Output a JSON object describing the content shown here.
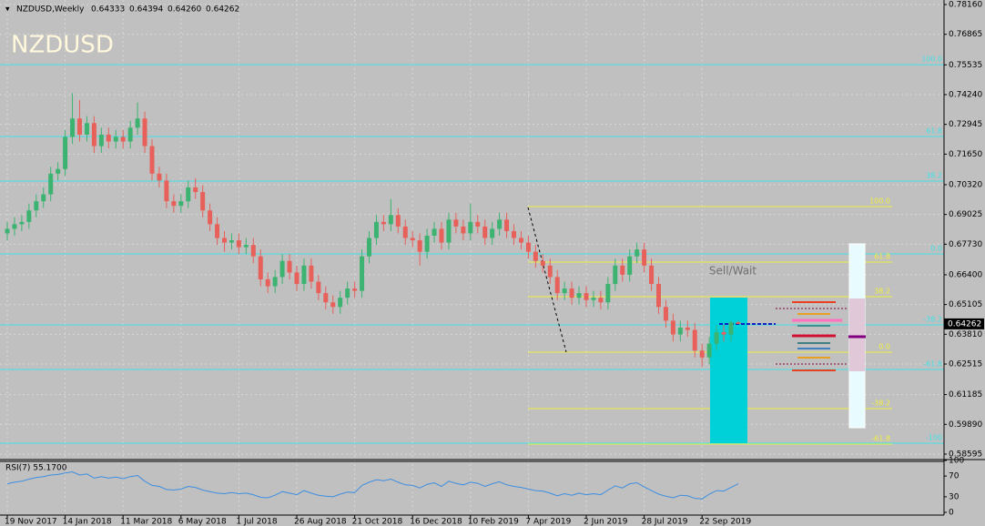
{
  "chart_data": {
    "type": "candlestick",
    "title": "NZDUSD,Weekly",
    "header_values": [
      "0.64333",
      "0.64394",
      "0.64260",
      "0.64262"
    ],
    "watermark": "NZDUSD",
    "colors": {
      "up": "#3cb371",
      "down": "#e8605a"
    },
    "ylim": [
      0.58357,
      0.78358
    ],
    "yticks": [
      {
        "value": 0.7816,
        "label": "0.78160"
      },
      0.76865,
      0.75535,
      {
        "value": 0.7424,
        "label": "0.74240"
      },
      0.72945,
      {
        "value": 0.7165,
        "label": "0.71650"
      },
      {
        "value": 0.7032,
        "label": "0.70320"
      },
      0.69025,
      {
        "value": 0.6773,
        "label": "0.67730"
      },
      {
        "value": 0.664,
        "label": "0.66400"
      },
      0.65105,
      {
        "value": 0.6381,
        "label": "0.63810"
      },
      0.62515,
      0.61185,
      {
        "value": 0.5989,
        "label": "0.59890"
      },
      0.58595
    ],
    "last_price": 0.64262,
    "grid": true,
    "categories": [
      "19 Nov 2017",
      null,
      null,
      null,
      null,
      null,
      null,
      null,
      "14 Jan 2018",
      null,
      null,
      null,
      null,
      null,
      null,
      null,
      "11 Mar 2018",
      null,
      null,
      null,
      null,
      null,
      null,
      null,
      "6 May 2018",
      null,
      null,
      null,
      null,
      null,
      null,
      null,
      "1 Jul 2018",
      null,
      null,
      null,
      null,
      null,
      null,
      null,
      "26 Aug 2018",
      null,
      null,
      null,
      null,
      null,
      null,
      null,
      "21 Oct 2018",
      null,
      null,
      null,
      null,
      null,
      null,
      null,
      "16 Dec 2018",
      null,
      null,
      null,
      null,
      null,
      null,
      null,
      "10 Feb 2019",
      null,
      null,
      null,
      null,
      null,
      null,
      null,
      "7 Apr 2019",
      null,
      null,
      null,
      null,
      null,
      null,
      null,
      "2 Jun 2019",
      null,
      null,
      null,
      null,
      null,
      null,
      null,
      "28 Jul 2019",
      null,
      null,
      null,
      null,
      null,
      null,
      null,
      "22 Sep 2019",
      null,
      null,
      null,
      null,
      null
    ],
    "ohlc": [
      [
        0.682,
        0.687,
        0.679,
        0.684
      ],
      [
        0.684,
        0.689,
        0.681,
        0.686
      ],
      [
        0.686,
        0.69,
        0.683,
        0.687
      ],
      [
        0.687,
        0.695,
        0.684,
        0.692
      ],
      [
        0.692,
        0.699,
        0.689,
        0.696
      ],
      [
        0.696,
        0.702,
        0.693,
        0.699
      ],
      [
        0.699,
        0.711,
        0.696,
        0.708
      ],
      [
        0.708,
        0.713,
        0.705,
        0.71
      ],
      [
        0.71,
        0.727,
        0.707,
        0.724
      ],
      [
        0.724,
        0.743,
        0.721,
        0.732
      ],
      [
        0.732,
        0.74,
        0.722,
        0.725
      ],
      [
        0.725,
        0.733,
        0.722,
        0.73
      ],
      [
        0.73,
        0.733,
        0.717,
        0.72
      ],
      [
        0.72,
        0.728,
        0.717,
        0.725
      ],
      [
        0.725,
        0.728,
        0.719,
        0.722
      ],
      [
        0.722,
        0.727,
        0.719,
        0.724
      ],
      [
        0.724,
        0.727,
        0.719,
        0.722
      ],
      [
        0.722,
        0.731,
        0.719,
        0.728
      ],
      [
        0.728,
        0.739,
        0.725,
        0.732
      ],
      [
        0.732,
        0.735,
        0.717,
        0.72
      ],
      [
        0.72,
        0.723,
        0.705,
        0.708
      ],
      [
        0.708,
        0.711,
        0.702,
        0.705
      ],
      [
        0.705,
        0.708,
        0.693,
        0.696
      ],
      [
        0.696,
        0.699,
        0.691,
        0.694
      ],
      [
        0.694,
        0.699,
        0.691,
        0.696
      ],
      [
        0.696,
        0.705,
        0.693,
        0.702
      ],
      [
        0.702,
        0.706,
        0.697,
        0.7
      ],
      [
        0.7,
        0.703,
        0.689,
        0.692
      ],
      [
        0.692,
        0.695,
        0.683,
        0.686
      ],
      [
        0.686,
        0.689,
        0.677,
        0.68
      ],
      [
        0.68,
        0.683,
        0.674,
        0.678
      ],
      [
        0.678,
        0.682,
        0.675,
        0.679
      ],
      [
        0.679,
        0.682,
        0.673,
        0.676
      ],
      [
        0.676,
        0.68,
        0.673,
        0.677
      ],
      [
        0.677,
        0.68,
        0.669,
        0.672
      ],
      [
        0.672,
        0.675,
        0.659,
        0.662
      ],
      [
        0.662,
        0.665,
        0.656,
        0.659
      ],
      [
        0.659,
        0.666,
        0.656,
        0.663
      ],
      [
        0.663,
        0.673,
        0.66,
        0.67
      ],
      [
        0.67,
        0.673,
        0.662,
        0.665
      ],
      [
        0.665,
        0.668,
        0.657,
        0.66
      ],
      [
        0.66,
        0.671,
        0.657,
        0.668
      ],
      [
        0.668,
        0.671,
        0.658,
        0.661
      ],
      [
        0.661,
        0.664,
        0.653,
        0.656
      ],
      [
        0.656,
        0.659,
        0.649,
        0.652
      ],
      [
        0.652,
        0.655,
        0.647,
        0.65
      ],
      [
        0.65,
        0.657,
        0.647,
        0.654
      ],
      [
        0.654,
        0.661,
        0.651,
        0.658
      ],
      [
        0.658,
        0.661,
        0.654,
        0.657
      ],
      [
        0.657,
        0.675,
        0.654,
        0.672
      ],
      [
        0.672,
        0.683,
        0.669,
        0.68
      ],
      [
        0.68,
        0.69,
        0.677,
        0.687
      ],
      [
        0.687,
        0.69,
        0.683,
        0.686
      ],
      [
        0.686,
        0.697,
        0.683,
        0.69
      ],
      [
        0.69,
        0.693,
        0.682,
        0.685
      ],
      [
        0.685,
        0.688,
        0.677,
        0.68
      ],
      [
        0.68,
        0.683,
        0.676,
        0.679
      ],
      [
        0.679,
        0.682,
        0.668,
        0.674
      ],
      [
        0.674,
        0.684,
        0.671,
        0.681
      ],
      [
        0.681,
        0.687,
        0.678,
        0.684
      ],
      [
        0.684,
        0.687,
        0.675,
        0.678
      ],
      [
        0.678,
        0.691,
        0.675,
        0.688
      ],
      [
        0.688,
        0.691,
        0.682,
        0.685
      ],
      [
        0.685,
        0.688,
        0.679,
        0.682
      ],
      [
        0.682,
        0.695,
        0.679,
        0.687
      ],
      [
        0.687,
        0.69,
        0.682,
        0.685
      ],
      [
        0.685,
        0.688,
        0.677,
        0.68
      ],
      [
        0.68,
        0.687,
        0.677,
        0.684
      ],
      [
        0.684,
        0.691,
        0.681,
        0.688
      ],
      [
        0.688,
        0.691,
        0.68,
        0.683
      ],
      [
        0.683,
        0.686,
        0.677,
        0.68
      ],
      [
        0.68,
        0.683,
        0.675,
        0.678
      ],
      [
        0.678,
        0.681,
        0.671,
        0.674
      ],
      [
        0.674,
        0.677,
        0.667,
        0.67
      ],
      [
        0.67,
        0.673,
        0.665,
        0.668
      ],
      [
        0.668,
        0.671,
        0.66,
        0.663
      ],
      [
        0.663,
        0.666,
        0.653,
        0.656
      ],
      [
        0.656,
        0.661,
        0.653,
        0.658
      ],
      [
        0.658,
        0.661,
        0.651,
        0.654
      ],
      [
        0.654,
        0.659,
        0.651,
        0.656
      ],
      [
        0.656,
        0.659,
        0.65,
        0.653
      ],
      [
        0.653,
        0.657,
        0.65,
        0.654
      ],
      [
        0.654,
        0.657,
        0.649,
        0.652
      ],
      [
        0.652,
        0.663,
        0.649,
        0.66
      ],
      [
        0.66,
        0.671,
        0.657,
        0.668
      ],
      [
        0.668,
        0.671,
        0.661,
        0.664
      ],
      [
        0.664,
        0.675,
        0.661,
        0.672
      ],
      [
        0.672,
        0.678,
        0.669,
        0.675
      ],
      [
        0.675,
        0.678,
        0.665,
        0.668
      ],
      [
        0.668,
        0.671,
        0.657,
        0.66
      ],
      [
        0.66,
        0.663,
        0.647,
        0.65
      ],
      [
        0.65,
        0.653,
        0.641,
        0.644
      ],
      [
        0.644,
        0.647,
        0.635,
        0.638
      ],
      [
        0.638,
        0.644,
        0.635,
        0.641
      ],
      [
        0.641,
        0.644,
        0.637,
        0.64
      ],
      [
        0.64,
        0.643,
        0.628,
        0.631
      ],
      [
        0.631,
        0.634,
        0.624,
        0.628
      ],
      [
        0.628,
        0.637,
        0.625,
        0.634
      ],
      [
        0.634,
        0.642,
        0.631,
        0.639
      ],
      [
        0.639,
        0.642,
        0.635,
        0.638
      ],
      [
        0.638,
        0.644,
        0.635,
        0.6433
      ],
      [
        0.64333,
        0.64394,
        0.6426,
        0.64262
      ]
    ],
    "fib_levels": [
      {
        "label": "100.0",
        "value": 0.7554,
        "color": "#40e0e8",
        "span": "full"
      },
      {
        "label": "61.8",
        "value": 0.72417,
        "color": "#40e0e8",
        "span": "full"
      },
      {
        "label": "38.2",
        "value": 0.70477,
        "color": "#40e0e8",
        "span": "full"
      },
      {
        "label": "0.0",
        "value": 0.67309,
        "color": "#40e0e8",
        "span": "full"
      },
      {
        "label": "-38.2",
        "value": 0.6422,
        "color": "#40e0e8",
        "span": "full"
      },
      {
        "label": "-61.8",
        "value": 0.62279,
        "color": "#40e0e8",
        "span": "full"
      },
      {
        "label": "-100",
        "value": 0.59071,
        "color": "#40e0e8",
        "span": "full"
      },
      {
        "label": "100.0",
        "value": 0.69368,
        "color": "#f0f040",
        "span": "part"
      },
      {
        "label": "61.8",
        "value": 0.66952,
        "color": "#f0f040",
        "span": "part"
      },
      {
        "label": "38.2",
        "value": 0.65447,
        "color": "#f0f040",
        "span": "part"
      },
      {
        "label": "0.0",
        "value": 0.63031,
        "color": "#f0f040",
        "span": "part"
      },
      {
        "label": "-38.2",
        "value": 0.60576,
        "color": "#f0f040",
        "span": "part"
      },
      {
        "label": "-61.8",
        "value": 0.59031,
        "color": "#f0f040",
        "span": "part"
      }
    ],
    "annotation": "Sell/Wait",
    "rsi": {
      "title": "RSI(7) 55.1700",
      "color": "#3c8ee0",
      "ylim": [
        0,
        100
      ],
      "yticks": [
        100,
        70,
        30,
        0
      ],
      "values": [
        55,
        58,
        60,
        64,
        67,
        69,
        72,
        73,
        76,
        78,
        72,
        74,
        66,
        69,
        66,
        68,
        65,
        69,
        71,
        60,
        52,
        50,
        44,
        43,
        45,
        50,
        48,
        43,
        40,
        37,
        36,
        38,
        36,
        37,
        34,
        29,
        28,
        33,
        40,
        37,
        34,
        42,
        37,
        33,
        31,
        30,
        35,
        39,
        38,
        52,
        58,
        63,
        61,
        64,
        58,
        53,
        52,
        47,
        54,
        57,
        50,
        60,
        56,
        53,
        58,
        56,
        50,
        55,
        59,
        53,
        50,
        48,
        45,
        42,
        41,
        37,
        32,
        36,
        33,
        37,
        34,
        36,
        34,
        43,
        51,
        47,
        55,
        57,
        49,
        42,
        35,
        31,
        28,
        33,
        32,
        27,
        26,
        35,
        42,
        41,
        48,
        55.17
      ]
    }
  }
}
